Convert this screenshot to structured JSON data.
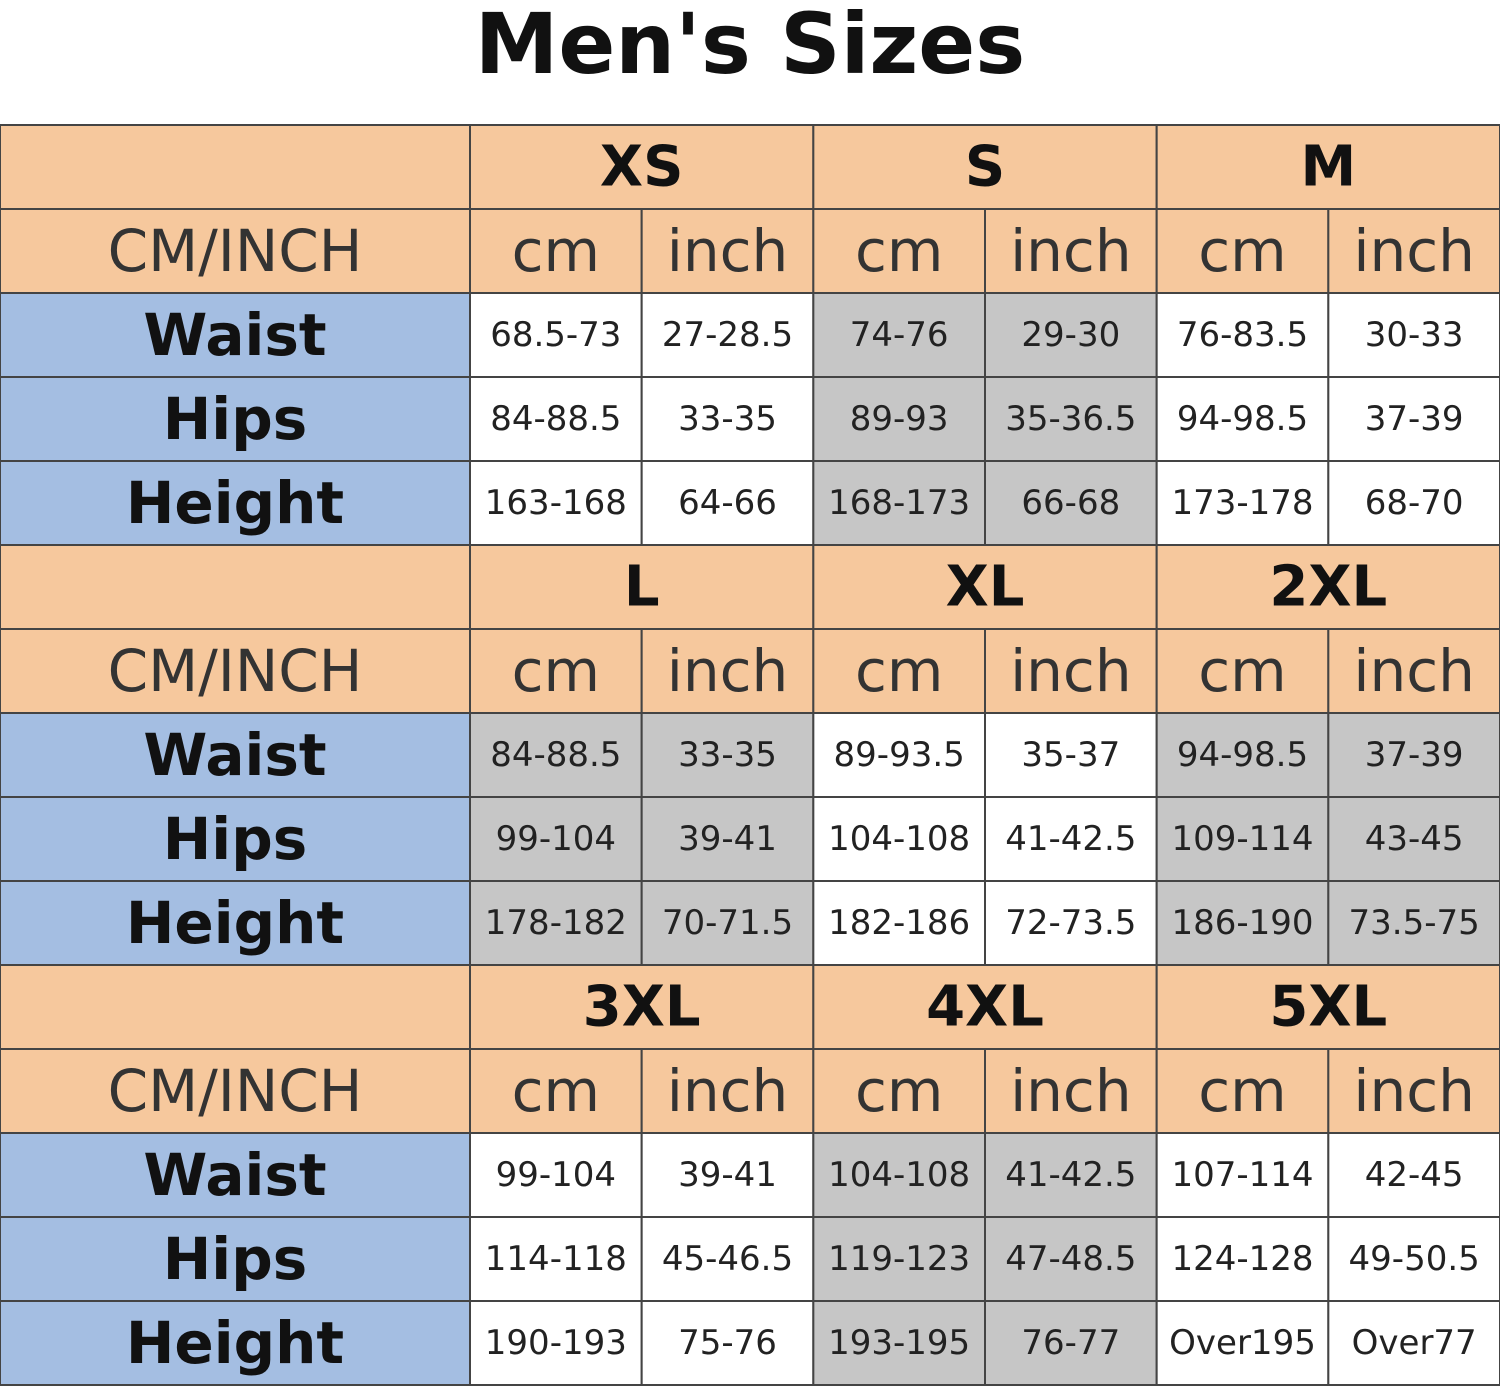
{
  "title": "Men's Sizes",
  "blocks": [
    {
      "sizes": [
        "XS",
        "S",
        "M"
      ],
      "unit_label": "CM/INCH",
      "units": [
        "cm",
        "inch",
        "cm",
        "inch",
        "cm",
        "inch"
      ],
      "rows": [
        {
          "label": "Waist",
          "values": [
            "68.5-73",
            "27-28.5",
            "74-76",
            "29-30",
            "76-83.5",
            "30-33"
          ]
        },
        {
          "label": "Hips",
          "values": [
            "84-88.5",
            "33-35",
            "89-93",
            "35-36.5",
            "94-98.5",
            "37-39"
          ]
        },
        {
          "label": "Height",
          "values": [
            "163-168",
            "64-66",
            "168-173",
            "66-68",
            "173-178",
            "68-70"
          ]
        }
      ]
    },
    {
      "sizes": [
        "L",
        "XL",
        "2XL"
      ],
      "unit_label": "CM/INCH",
      "units": [
        "cm",
        "inch",
        "cm",
        "inch",
        "cm",
        "inch"
      ],
      "rows": [
        {
          "label": "Waist",
          "values": [
            "84-88.5",
            "33-35",
            "89-93.5",
            "35-37",
            "94-98.5",
            "37-39"
          ]
        },
        {
          "label": "Hips",
          "values": [
            "99-104",
            "39-41",
            "104-108",
            "41-42.5",
            "109-114",
            "43-45"
          ]
        },
        {
          "label": "Height",
          "values": [
            "178-182",
            "70-71.5",
            "182-186",
            "72-73.5",
            "186-190",
            "73.5-75"
          ]
        }
      ]
    },
    {
      "sizes": [
        "3XL",
        "4XL",
        "5XL"
      ],
      "unit_label": "CM/INCH",
      "units": [
        "cm",
        "inch",
        "cm",
        "inch",
        "cm",
        "inch"
      ],
      "rows": [
        {
          "label": "Waist",
          "values": [
            "99-104",
            "39-41",
            "104-108",
            "41-42.5",
            "107-114",
            "42-45"
          ]
        },
        {
          "label": "Hips",
          "values": [
            "114-118",
            "45-46.5",
            "119-123",
            "47-48.5",
            "124-128",
            "49-50.5"
          ]
        },
        {
          "label": "Height",
          "values": [
            "190-193",
            "75-76",
            "193-195",
            "76-77",
            "Over195",
            "Over77"
          ]
        }
      ]
    }
  ]
}
